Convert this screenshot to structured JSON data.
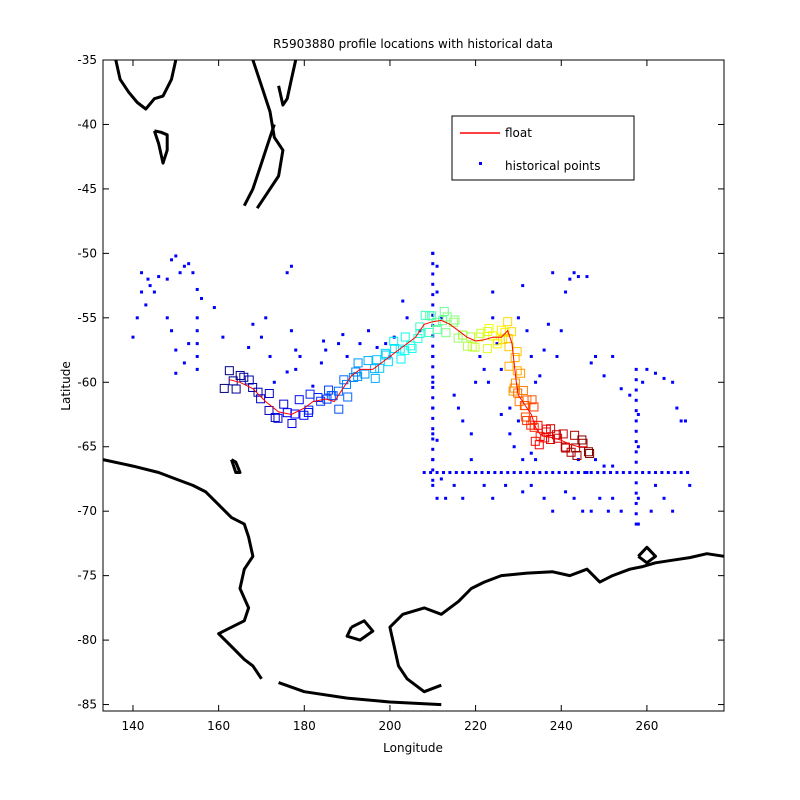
{
  "chart_data": {
    "type": "scatter",
    "title": "R5903880 profile locations with historical data",
    "xlabel": "Longitude",
    "ylabel": "Latitude",
    "xlim": [
      133,
      278
    ],
    "ylim": [
      -85.5,
      -35
    ],
    "xticks": [
      140,
      160,
      180,
      200,
      220,
      240,
      260
    ],
    "yticks": [
      -35,
      -40,
      -45,
      -50,
      -55,
      -60,
      -65,
      -70,
      -75,
      -80,
      -85
    ],
    "legend_position": "top-right",
    "legend": [
      {
        "label": "float",
        "marker": "line",
        "color": "#ff0000"
      },
      {
        "label": "historical points",
        "marker": "dot",
        "color": "#0000ff"
      }
    ],
    "colors": {
      "float": "#ff0000",
      "historical": "#0000ff",
      "coast": "#000000"
    },
    "float_track": [
      [
        162.5,
        -59.8
      ],
      [
        165,
        -60
      ],
      [
        168,
        -60.5
      ],
      [
        171,
        -61.5
      ],
      [
        174,
        -62.3
      ],
      [
        177,
        -62.5
      ],
      [
        180,
        -62
      ],
      [
        182,
        -61.5
      ],
      [
        185,
        -61.3
      ],
      [
        187,
        -61.5
      ],
      [
        189,
        -60.5
      ],
      [
        191,
        -59.5
      ],
      [
        193,
        -59
      ],
      [
        196,
        -59
      ],
      [
        198,
        -58.5
      ],
      [
        200,
        -58
      ],
      [
        202,
        -57.5
      ],
      [
        204,
        -57
      ],
      [
        206,
        -56.5
      ],
      [
        208,
        -55.5
      ],
      [
        210,
        -55.3
      ],
      [
        212,
        -55.2
      ],
      [
        214,
        -55.5
      ],
      [
        216,
        -56
      ],
      [
        218,
        -56.5
      ],
      [
        220,
        -56.8
      ],
      [
        222,
        -56.7
      ],
      [
        224,
        -56.5
      ],
      [
        226,
        -56.5
      ],
      [
        227.5,
        -56
      ],
      [
        228.5,
        -57
      ],
      [
        229,
        -58.5
      ],
      [
        229.5,
        -60
      ],
      [
        230,
        -61
      ],
      [
        231,
        -61.5
      ],
      [
        232,
        -62
      ],
      [
        233,
        -62.5
      ],
      [
        234,
        -63.5
      ],
      [
        235,
        -64
      ],
      [
        236,
        -64.2
      ],
      [
        238,
        -64.3
      ],
      [
        240,
        -64.5
      ],
      [
        242,
        -64.8
      ],
      [
        244,
        -65
      ],
      [
        246,
        -65
      ]
    ],
    "historical_points": [
      [
        140,
        -56.5
      ],
      [
        141,
        -55
      ],
      [
        142,
        -53
      ],
      [
        142,
        -51.5
      ],
      [
        143,
        -54
      ],
      [
        143.5,
        -52
      ],
      [
        144,
        -52.5
      ],
      [
        145,
        -53
      ],
      [
        146,
        -51.8
      ],
      [
        148,
        -52
      ],
      [
        149,
        -50.5
      ],
      [
        150,
        -50.2
      ],
      [
        151,
        -51.5
      ],
      [
        152,
        -51
      ],
      [
        153,
        -50.8
      ],
      [
        154,
        -51.5
      ],
      [
        155,
        -52.8
      ],
      [
        156,
        -53.5
      ],
      [
        148,
        -55
      ],
      [
        149,
        -56
      ],
      [
        150,
        -57.5
      ],
      [
        150,
        -59.3
      ],
      [
        152,
        -58.5
      ],
      [
        153,
        -57
      ],
      [
        155,
        -55
      ],
      [
        155,
        -56
      ],
      [
        155,
        -57
      ],
      [
        155,
        -58
      ],
      [
        155,
        -59
      ],
      [
        159,
        -54.2
      ],
      [
        161,
        -56.5
      ],
      [
        167,
        -57.3
      ],
      [
        168,
        -55.5
      ],
      [
        170,
        -56.5
      ],
      [
        171,
        -55
      ],
      [
        172,
        -58
      ],
      [
        173,
        -60
      ],
      [
        176,
        -59.2
      ],
      [
        177,
        -56
      ],
      [
        178,
        -57.5
      ],
      [
        178,
        -59
      ],
      [
        179,
        -58
      ],
      [
        182,
        -60.3
      ],
      [
        184,
        -58.5
      ],
      [
        184.5,
        -56.8
      ],
      [
        185,
        -57.5
      ],
      [
        188,
        -57
      ],
      [
        189,
        -56.3
      ],
      [
        190,
        -58
      ],
      [
        193,
        -57
      ],
      [
        195,
        -56
      ],
      [
        197,
        -57.3
      ],
      [
        199,
        -57
      ],
      [
        200,
        -58
      ],
      [
        201,
        -56.5
      ],
      [
        203,
        -53.7
      ],
      [
        204,
        -55
      ],
      [
        207,
        -56
      ],
      [
        176,
        -51.5
      ],
      [
        177,
        -51
      ],
      [
        210,
        -50
      ],
      [
        211,
        -51
      ],
      [
        211,
        -53
      ],
      [
        212,
        -55
      ],
      [
        210,
        -58
      ],
      [
        210,
        -60
      ],
      [
        210,
        -62
      ],
      [
        210,
        -64
      ],
      [
        210,
        -66
      ],
      [
        210,
        -68
      ],
      [
        211,
        -69
      ],
      [
        215,
        -61
      ],
      [
        216,
        -62
      ],
      [
        217,
        -63
      ],
      [
        219,
        -64
      ],
      [
        220,
        -60
      ],
      [
        221,
        -58
      ],
      [
        222,
        -59
      ],
      [
        223,
        -60
      ],
      [
        224,
        -53
      ],
      [
        224,
        -55
      ],
      [
        225,
        -57
      ],
      [
        226,
        -59
      ],
      [
        228,
        -62
      ],
      [
        230,
        -55
      ],
      [
        231,
        -52.5
      ],
      [
        232,
        -56
      ],
      [
        233,
        -58
      ],
      [
        234,
        -60
      ],
      [
        235,
        -59.5
      ],
      [
        236,
        -57.5
      ],
      [
        237,
        -55.5
      ],
      [
        238,
        -51.5
      ],
      [
        239,
        -58
      ],
      [
        240,
        -56
      ],
      [
        241,
        -53
      ],
      [
        242,
        -52
      ],
      [
        243,
        -51.5
      ],
      [
        244,
        -51.8
      ],
      [
        246,
        -51.8
      ],
      [
        247,
        -58.5
      ],
      [
        248,
        -58
      ],
      [
        250,
        -59.5
      ],
      [
        252,
        -58
      ],
      [
        254,
        -60.5
      ],
      [
        256,
        -61
      ],
      [
        258,
        -62.5
      ],
      [
        259,
        -60
      ],
      [
        260,
        -59
      ],
      [
        262,
        -59.3
      ],
      [
        264,
        -59.7
      ],
      [
        266,
        -60
      ],
      [
        267,
        -62
      ],
      [
        268,
        -63
      ],
      [
        269,
        -63
      ],
      [
        270,
        -68
      ],
      [
        258,
        -65
      ],
      [
        258,
        -69
      ],
      [
        258,
        -71
      ],
      [
        261,
        -70
      ],
      [
        262,
        -68
      ],
      [
        264,
        -69
      ],
      [
        266,
        -70
      ],
      [
        219,
        -66
      ],
      [
        224,
        -69
      ],
      [
        227,
        -68
      ],
      [
        231,
        -68.5
      ],
      [
        233,
        -68
      ],
      [
        236,
        -69
      ],
      [
        238,
        -70
      ],
      [
        241,
        -68.5
      ],
      [
        243,
        -69
      ],
      [
        245,
        -70
      ],
      [
        247,
        -70
      ],
      [
        249,
        -69
      ],
      [
        251,
        -70
      ],
      [
        252,
        -69
      ],
      [
        254,
        -70
      ],
      [
        226,
        -62.5
      ],
      [
        228,
        -64
      ],
      [
        229,
        -65
      ],
      [
        230,
        -63
      ],
      [
        231,
        -66
      ],
      [
        233,
        -65.5
      ],
      [
        234,
        -66
      ],
      [
        244,
        -66
      ],
      [
        246,
        -67
      ],
      [
        248,
        -66
      ],
      [
        250,
        -66.5
      ],
      [
        252,
        -66.5
      ],
      [
        211,
        -64.5
      ],
      [
        212,
        -67.5
      ],
      [
        213,
        -69
      ],
      [
        215,
        -68
      ],
      [
        217,
        -69
      ],
      [
        220,
        -67
      ],
      [
        222,
        -68
      ]
    ],
    "sampled_axis_labels_note": ""
  }
}
